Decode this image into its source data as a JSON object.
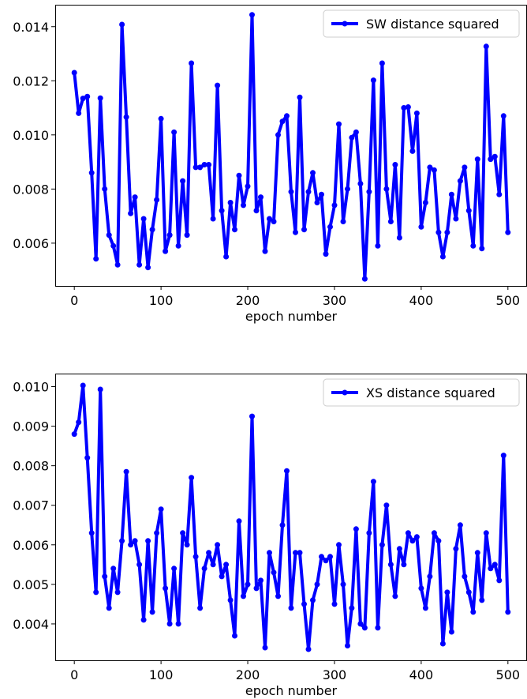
{
  "chart_data": [
    {
      "type": "line",
      "xlabel": "epoch number",
      "ylabel": "",
      "xlim": [
        -22,
        522
      ],
      "ylim": [
        0.00442,
        0.01481
      ],
      "xticks": [
        0,
        100,
        200,
        300,
        400,
        500
      ],
      "yticks": [
        0.006,
        0.008,
        0.01,
        0.012,
        0.014
      ],
      "ytick_labels": [
        "0.006",
        "0.008",
        "0.010",
        "0.012",
        "0.014"
      ],
      "xtick_labels": [
        "0",
        "100",
        "200",
        "300",
        "400",
        "500"
      ],
      "legend_position": "top-right",
      "series_color": "#0000ff",
      "series": [
        {
          "name": "SW distance squared",
          "x": [
            0,
            5,
            10,
            15,
            20,
            25,
            30,
            35,
            40,
            45,
            50,
            55,
            60,
            65,
            70,
            75,
            80,
            85,
            90,
            95,
            100,
            105,
            110,
            115,
            120,
            125,
            130,
            135,
            140,
            145,
            150,
            155,
            160,
            165,
            170,
            175,
            180,
            185,
            190,
            195,
            200,
            205,
            210,
            215,
            220,
            225,
            230,
            235,
            240,
            245,
            250,
            255,
            260,
            265,
            270,
            275,
            280,
            285,
            290,
            295,
            300,
            305,
            310,
            315,
            320,
            325,
            330,
            335,
            340,
            345,
            350,
            355,
            360,
            365,
            370,
            375,
            380,
            385,
            390,
            395,
            400,
            405,
            410,
            415,
            420,
            425,
            430,
            435,
            440,
            445,
            450,
            455,
            460,
            465,
            470,
            475,
            480,
            485,
            490,
            495,
            500
          ],
          "y": [
            0.0123,
            0.0108,
            0.01135,
            0.01142,
            0.0086,
            0.00542,
            0.01136,
            0.008,
            0.0063,
            0.0059,
            0.0052,
            0.01408,
            0.01066,
            0.0071,
            0.0077,
            0.0052,
            0.0069,
            0.0051,
            0.0065,
            0.0076,
            0.0106,
            0.0057,
            0.0063,
            0.0101,
            0.0059,
            0.0083,
            0.0063,
            0.01265,
            0.0088,
            0.0088,
            0.0089,
            0.0089,
            0.0069,
            0.01183,
            0.0072,
            0.0055,
            0.0075,
            0.0065,
            0.0085,
            0.0074,
            0.0081,
            0.01444,
            0.0072,
            0.0077,
            0.0057,
            0.0069,
            0.0068,
            0.01,
            0.0105,
            0.0107,
            0.0079,
            0.0064,
            0.01139,
            0.0065,
            0.0079,
            0.0086,
            0.0075,
            0.0078,
            0.0056,
            0.0066,
            0.0074,
            0.0104,
            0.0068,
            0.008,
            0.0099,
            0.0101,
            0.0082,
            0.00468,
            0.0079,
            0.01202,
            0.0059,
            0.01265,
            0.008,
            0.0068,
            0.0089,
            0.0062,
            0.011,
            0.01103,
            0.0094,
            0.0108,
            0.0066,
            0.0075,
            0.0088,
            0.0087,
            0.0064,
            0.0055,
            0.0064,
            0.0078,
            0.0069,
            0.0083,
            0.0088,
            0.0072,
            0.0059,
            0.0091,
            0.0058,
            0.01327,
            0.0091,
            0.0092,
            0.0078,
            0.0107,
            0.0064
          ]
        }
      ]
    },
    {
      "type": "line",
      "xlabel": "epoch number",
      "ylabel": "",
      "xlim": [
        -22,
        522
      ],
      "ylim": [
        0.00308,
        0.01033
      ],
      "xticks": [
        0,
        100,
        200,
        300,
        400,
        500
      ],
      "yticks": [
        0.004,
        0.005,
        0.006,
        0.007,
        0.008,
        0.009,
        0.01
      ],
      "ytick_labels": [
        "0.004",
        "0.005",
        "0.006",
        "0.007",
        "0.008",
        "0.009",
        "0.010"
      ],
      "xtick_labels": [
        "0",
        "100",
        "200",
        "300",
        "400",
        "500"
      ],
      "legend_position": "top-right",
      "series_color": "#0000ff",
      "series": [
        {
          "name": "XS distance squared",
          "x": [
            0,
            5,
            10,
            15,
            20,
            25,
            30,
            35,
            40,
            45,
            50,
            55,
            60,
            65,
            70,
            75,
            80,
            85,
            90,
            95,
            100,
            105,
            110,
            115,
            120,
            125,
            130,
            135,
            140,
            145,
            150,
            155,
            160,
            165,
            170,
            175,
            180,
            185,
            190,
            195,
            200,
            205,
            210,
            215,
            220,
            225,
            230,
            235,
            240,
            245,
            250,
            255,
            260,
            265,
            270,
            275,
            280,
            285,
            290,
            295,
            300,
            305,
            310,
            315,
            320,
            325,
            330,
            335,
            340,
            345,
            350,
            355,
            360,
            365,
            370,
            375,
            380,
            385,
            390,
            395,
            400,
            405,
            410,
            415,
            420,
            425,
            430,
            435,
            440,
            445,
            450,
            455,
            460,
            465,
            470,
            475,
            480,
            485,
            490,
            495,
            500
          ],
          "y": [
            0.0088,
            0.0091,
            0.01003,
            0.0082,
            0.0063,
            0.0048,
            0.00993,
            0.0052,
            0.0044,
            0.0054,
            0.0048,
            0.0061,
            0.00785,
            0.006,
            0.0061,
            0.0055,
            0.0041,
            0.0061,
            0.0043,
            0.0063,
            0.0069,
            0.0049,
            0.004,
            0.0054,
            0.004,
            0.0063,
            0.006,
            0.0077,
            0.0057,
            0.0044,
            0.0054,
            0.0058,
            0.0055,
            0.006,
            0.0052,
            0.0055,
            0.0046,
            0.0037,
            0.0066,
            0.0047,
            0.005,
            0.00925,
            0.0049,
            0.0051,
            0.0034,
            0.0058,
            0.0053,
            0.0047,
            0.0065,
            0.00787,
            0.0044,
            0.0058,
            0.0058,
            0.0045,
            0.00336,
            0.0046,
            0.005,
            0.0057,
            0.0056,
            0.0057,
            0.0045,
            0.006,
            0.005,
            0.00345,
            0.0044,
            0.0064,
            0.004,
            0.0039,
            0.0063,
            0.0076,
            0.0039,
            0.006,
            0.007,
            0.0055,
            0.0047,
            0.0059,
            0.0055,
            0.0063,
            0.0061,
            0.0062,
            0.0049,
            0.0044,
            0.0052,
            0.0063,
            0.0061,
            0.0035,
            0.0048,
            0.0038,
            0.0059,
            0.0065,
            0.0052,
            0.0048,
            0.0043,
            0.0058,
            0.0046,
            0.0063,
            0.0054,
            0.0055,
            0.0051,
            0.00826,
            0.0043
          ]
        }
      ]
    }
  ]
}
